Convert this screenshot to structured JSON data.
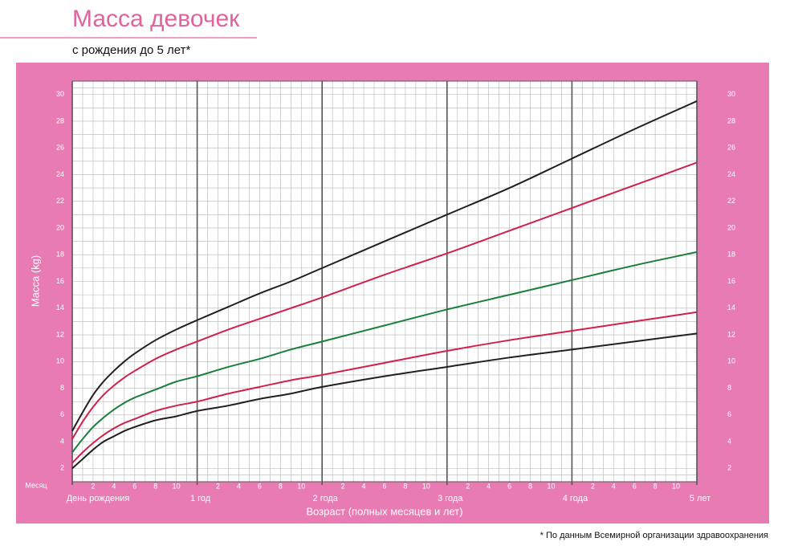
{
  "chart_data": {
    "type": "line",
    "title": "Масса девочек",
    "subtitle": "с рождения до 5 лет*",
    "x_label": "Возраст (полных месяцев и лет)",
    "y_label": "Масса (kg)",
    "month_label": "Месяц",
    "footnote": "* По данным Всемирной организации здравоохранения",
    "x": [
      0,
      1,
      2,
      3,
      4,
      5,
      6,
      8,
      10,
      12,
      15,
      18,
      21,
      24,
      30,
      36,
      42,
      48,
      54,
      60
    ],
    "series": [
      {
        "color": "#231f20",
        "values": [
          4.8,
          6.2,
          7.5,
          8.5,
          9.3,
          10.0,
          10.6,
          11.6,
          12.4,
          13.1,
          14.1,
          15.1,
          16.0,
          17.0,
          19.0,
          21.0,
          23.0,
          25.2,
          27.4,
          29.5
        ]
      },
      {
        "color": "#d2204c",
        "values": [
          4.2,
          5.5,
          6.6,
          7.5,
          8.2,
          8.8,
          9.3,
          10.2,
          10.9,
          11.5,
          12.4,
          13.2,
          14.0,
          14.8,
          16.5,
          18.1,
          19.8,
          21.5,
          23.2,
          24.9
        ]
      },
      {
        "color": "#1a7f3c",
        "values": [
          3.2,
          4.2,
          5.1,
          5.8,
          6.4,
          6.9,
          7.3,
          7.9,
          8.5,
          8.9,
          9.6,
          10.2,
          10.9,
          11.5,
          12.7,
          13.9,
          15.0,
          16.1,
          17.2,
          18.2
        ]
      },
      {
        "color": "#d2204c",
        "values": [
          2.4,
          3.2,
          3.9,
          4.5,
          5.0,
          5.4,
          5.7,
          6.3,
          6.7,
          7.0,
          7.6,
          8.1,
          8.6,
          9.0,
          9.9,
          10.8,
          11.6,
          12.3,
          13.0,
          13.7
        ]
      },
      {
        "color": "#231f20",
        "values": [
          2.0,
          2.7,
          3.4,
          4.0,
          4.4,
          4.8,
          5.1,
          5.6,
          5.9,
          6.3,
          6.7,
          7.2,
          7.6,
          8.1,
          8.9,
          9.6,
          10.3,
          10.9,
          11.5,
          12.1
        ]
      }
    ],
    "xlim": [
      0,
      60
    ],
    "ylim": [
      1,
      31
    ],
    "yticks": [
      2,
      4,
      6,
      8,
      10,
      12,
      14,
      16,
      18,
      20,
      22,
      24,
      26,
      28,
      30
    ],
    "xticks": [
      2,
      4,
      6,
      8,
      10,
      {
        "value": 14,
        "label": "2"
      },
      {
        "value": 16,
        "label": "4"
      },
      {
        "value": 18,
        "label": "6"
      },
      {
        "value": 20,
        "label": "8"
      },
      {
        "value": 22,
        "label": "10"
      },
      {
        "value": 26,
        "label": "2"
      },
      {
        "value": 28,
        "label": "4"
      },
      {
        "value": 30,
        "label": "6"
      },
      {
        "value": 32,
        "label": "8"
      },
      {
        "value": 34,
        "label": "10"
      },
      {
        "value": 38,
        "label": "2"
      },
      {
        "value": 40,
        "label": "4"
      },
      {
        "value": 42,
        "label": "6"
      },
      {
        "value": 44,
        "label": "8"
      },
      {
        "value": 46,
        "label": "10"
      },
      {
        "value": 50,
        "label": "2"
      },
      {
        "value": 52,
        "label": "4"
      },
      {
        "value": 54,
        "label": "6"
      },
      {
        "value": 56,
        "label": "8"
      },
      {
        "value": 58,
        "label": "10"
      }
    ],
    "year_ticks": [
      {
        "value": 0,
        "label": "День рождения"
      },
      {
        "value": 12,
        "label": "1 год"
      },
      {
        "value": 24,
        "label": "2 года"
      },
      {
        "value": 36,
        "label": "3 года"
      },
      {
        "value": 48,
        "label": "4 года"
      },
      {
        "value": 60,
        "label": "5 лет"
      }
    ],
    "grid": true
  }
}
